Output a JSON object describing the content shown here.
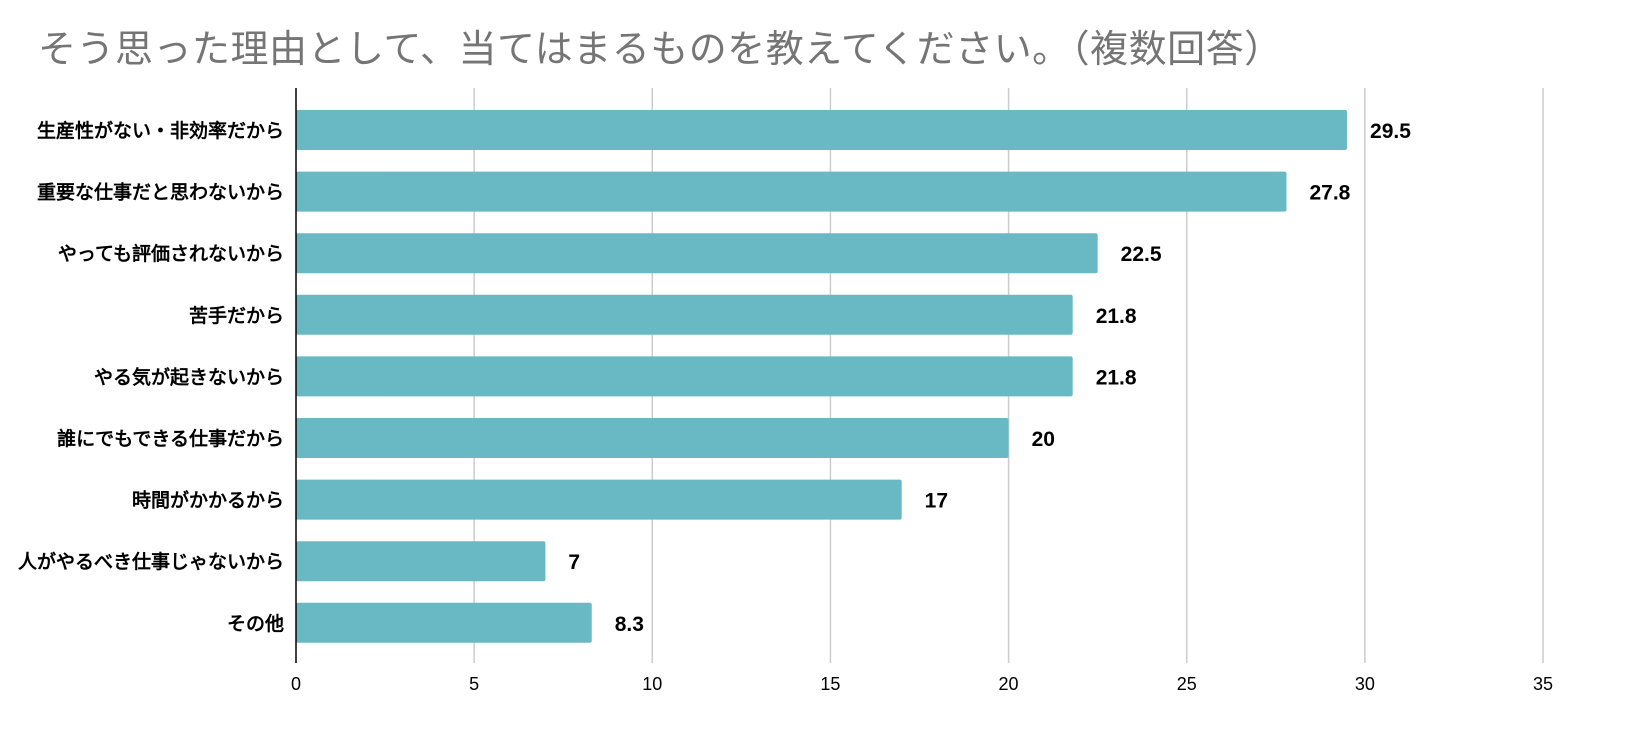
{
  "chart_data": {
    "type": "bar",
    "orientation": "horizontal",
    "title": "そう思った理由として、当てはまるものを教えてください。（複数回答）",
    "xlabel": "",
    "ylabel": "",
    "categories": [
      "生産性がない・非効率だから",
      "重要な仕事だと思わないから",
      "やっても評価されないから",
      "苦手だから",
      "やる気が起きないから",
      "誰にでもできる仕事だから",
      "時間がかかるから",
      "人がやるべき仕事じゃないから",
      "その他"
    ],
    "values": [
      29.5,
      27.8,
      22.5,
      21.8,
      21.8,
      20,
      17,
      7,
      8.3
    ],
    "value_labels": [
      "29.5",
      "27.8",
      "22.5",
      "21.8",
      "21.8",
      "20",
      "17",
      "7",
      "8.3"
    ],
    "xlim": [
      0,
      35
    ],
    "xticks": [
      0,
      5,
      10,
      15,
      20,
      25,
      30,
      35
    ],
    "xtick_labels": [
      "0",
      "5",
      "10",
      "15",
      "20",
      "25",
      "30",
      "35"
    ],
    "grid": true,
    "legend": "none",
    "bar_color": "#68b9c4",
    "grid_color": "#cccccc",
    "title_color": "#757575"
  }
}
